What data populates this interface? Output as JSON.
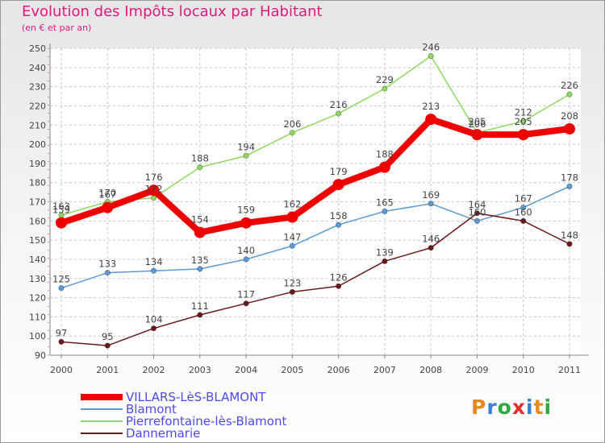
{
  "header": {
    "title": "Evolution des Impôts locaux par Habitant",
    "subtitle": "(en € et par an)"
  },
  "logo": {
    "text": "Proxiti",
    "letter_colors": [
      "#e68a1f",
      "#3a7fd6",
      "#2eaa3a",
      "#e02e2e",
      "#3a7fd6",
      "#e68a1f",
      "#2eaa3a"
    ]
  },
  "chart_data": {
    "type": "line",
    "title": "Evolution des Impôts locaux par Habitant",
    "ylabel": "(en € et par an)",
    "xlabel": "",
    "x": [
      "2000",
      "2001",
      "2002",
      "2003",
      "2004",
      "2005",
      "2006",
      "2007",
      "2008",
      "2009",
      "2010",
      "2011"
    ],
    "ylim": [
      90,
      250
    ],
    "yticks": [
      90,
      100,
      110,
      120,
      130,
      140,
      150,
      160,
      170,
      180,
      190,
      200,
      210,
      220,
      230,
      240,
      250
    ],
    "grid": true,
    "legend_position": "bottom-left",
    "series": [
      {
        "name": "Pierrefontaine-lès-Blamont",
        "color": "#8fd860",
        "values": [
          163,
          170,
          172,
          188,
          194,
          206,
          216,
          229,
          246,
          206,
          212,
          226
        ]
      },
      {
        "name": "Blamont",
        "color": "#5a9bd5",
        "values": [
          125,
          133,
          134,
          135,
          140,
          147,
          158,
          165,
          169,
          160,
          167,
          178
        ]
      },
      {
        "name": "Dannemarie",
        "color": "#6b1a1a",
        "values": [
          97,
          95,
          104,
          111,
          117,
          123,
          126,
          139,
          146,
          164,
          160,
          148
        ]
      },
      {
        "name": "VILLARS-LèS-BLAMONT",
        "color": "#ee0000",
        "values": [
          159,
          167,
          176,
          154,
          159,
          162,
          179,
          188,
          213,
          205,
          205,
          208
        ]
      }
    ],
    "legend": [
      {
        "name": "VILLARS-LèS-BLAMONT",
        "color": "#ee0000"
      },
      {
        "name": "Blamont",
        "color": "#5a9bd5"
      },
      {
        "name": "Pierrefontaine-lès-Blamont",
        "color": "#8fd860"
      },
      {
        "name": "Dannemarie",
        "color": "#6b1a1a"
      }
    ]
  }
}
